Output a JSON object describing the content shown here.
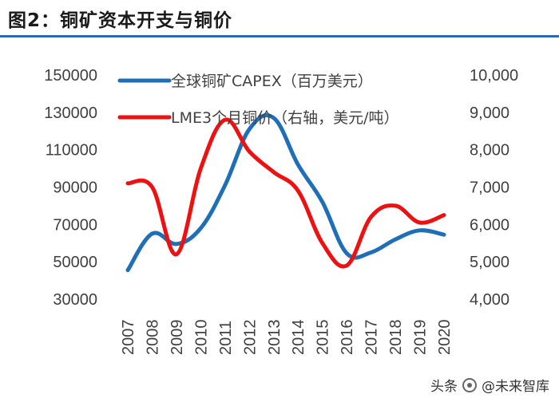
{
  "figure_title": "图2：铜矿资本开支与铜价",
  "watermark": {
    "prefix": "头条",
    "handle": "@未来智库",
    "icon": "brand-logo-icon"
  },
  "colors": {
    "capex": "#1f6fb8",
    "price": "#ee1111",
    "title_rule": "#2a6ab0",
    "text": "#404040"
  },
  "chart_data": {
    "type": "line",
    "title": "图2：铜矿资本开支与铜价",
    "x": [
      "2007",
      "2008",
      "2009",
      "2010",
      "2011",
      "2012",
      "2013",
      "2014",
      "2015",
      "2016",
      "2017",
      "2018",
      "2019",
      "2020"
    ],
    "series": [
      {
        "name": "全球铜矿CAPEX（百万美元）",
        "axis": "left",
        "values": [
          45500,
          65000,
          59500,
          68000,
          91000,
          121000,
          127000,
          102000,
          82000,
          54500,
          55000,
          62000,
          66800,
          64500
        ]
      },
      {
        "name": "LME3个月铜价（右轴，美元/吨）",
        "axis": "right",
        "values": [
          7100,
          7000,
          5200,
          7500,
          8800,
          7950,
          7400,
          6900,
          5500,
          4900,
          6200,
          6500,
          6050,
          6250
        ]
      }
    ],
    "y_left": {
      "min": 30000,
      "max": 150000,
      "ticks": [
        30000,
        50000,
        70000,
        90000,
        110000,
        130000,
        150000
      ],
      "tick_labels": [
        "30000",
        "50000",
        "70000",
        "90000",
        "110000",
        "130000",
        "150000"
      ]
    },
    "y_right": {
      "min": 4000,
      "max": 10000,
      "ticks": [
        4000,
        5000,
        6000,
        7000,
        8000,
        9000,
        10000
      ],
      "tick_labels": [
        "4,000",
        "5,000",
        "6,000",
        "7,000",
        "8,000",
        "9,000",
        "10,000"
      ]
    },
    "xlabel": "",
    "ylabel": "",
    "grid": false,
    "legend": "top-left inside plot"
  }
}
